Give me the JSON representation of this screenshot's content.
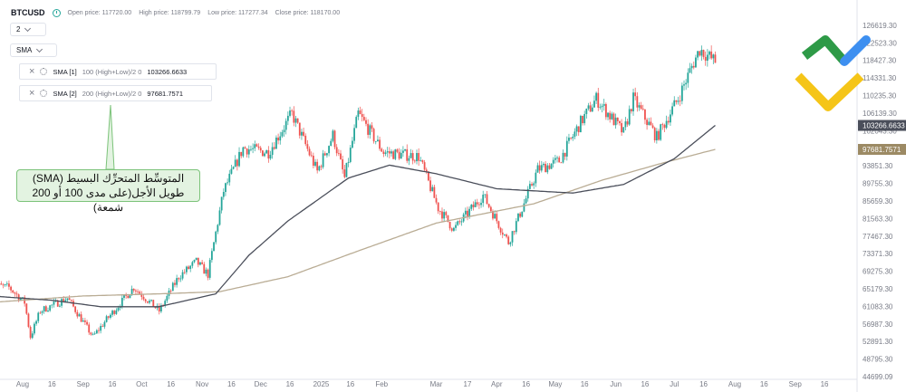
{
  "header": {
    "symbol": "BTCUSD",
    "open": "Open price: 117720.00",
    "high": "High price: 118799.79",
    "low": "Low price: 117277.34",
    "close": "Close price: 118170.00"
  },
  "controls": {
    "interval": "2",
    "indicator": "SMA"
  },
  "indicators": [
    {
      "name": "SMA [1]",
      "params": "100 (High+Low)/2 0",
      "value": "103266.6633"
    },
    {
      "name": "SMA [2]",
      "params": "200 (High+Low)/2 0",
      "value": "97681.7571"
    }
  ],
  "annotation": {
    "line1": "المتوسِّط المتحرِّك البسيط (SMA)",
    "line2": "طويل الأجل(على مدى 100 أو 200 شمعة)"
  },
  "colors": {
    "up": "#26a69a",
    "down": "#ef5350",
    "sma100": "#4a4e5a",
    "sma200": "#b9ac94",
    "annot_bg": "#e3f3e1",
    "annot_border": "#7cc37a"
  },
  "chart_data": {
    "type": "candlestick",
    "ylim": [
      44699.09,
      128500
    ],
    "ytick_values": [
      126619.3,
      122523.3,
      118427.3,
      114331.3,
      110235.3,
      106139.3,
      102043.3,
      97947.3,
      93851.3,
      89755.3,
      85659.3,
      81563.3,
      77467.3,
      73371.3,
      69275.3,
      65179.3,
      61083.3,
      56987.3,
      52891.3,
      48795.3,
      44699.09
    ],
    "ytick_labels": [
      "126619.30",
      "122523.30",
      "118427.30",
      "114331.30",
      "110235.30",
      "106139.30",
      "102043.30",
      "97947.30",
      "93851.30",
      "89755.30",
      "85659.30",
      "81563.30",
      "77467.30",
      "73371.30",
      "69275.30",
      "65179.30",
      "61083.30",
      "56987.30",
      "52891.30",
      "48795.30",
      "44699.09"
    ],
    "xtick_labels": [
      "Aug",
      "16",
      "Sep",
      "16",
      "Oct",
      "16",
      "Nov",
      "16",
      "Dec",
      "16",
      "2025",
      "16",
      "Feb",
      "Mar",
      "17",
      "Apr",
      "16",
      "May",
      "16",
      "Jun",
      "16",
      "Jul",
      "16",
      "Aug",
      "16",
      "Sep",
      "16"
    ],
    "xtick_dates": [
      "2024-08-01",
      "2024-08-16",
      "2024-09-01",
      "2024-09-16",
      "2024-10-01",
      "2024-10-16",
      "2024-11-01",
      "2024-11-16",
      "2024-12-01",
      "2024-12-16",
      "2025-01-01",
      "2025-01-16",
      "2025-02-01",
      "2025-03-01",
      "2025-03-17",
      "2025-04-01",
      "2025-04-16",
      "2025-05-01",
      "2025-05-16",
      "2025-06-01",
      "2025-06-16",
      "2025-07-01",
      "2025-07-16",
      "2025-08-01",
      "2025-08-16",
      "2025-09-01",
      "2025-09-16"
    ],
    "last_date": "2025-07-22",
    "price_key": [
      [
        "2024-07-16",
        66000
      ],
      [
        "2024-07-25",
        65500
      ],
      [
        "2024-08-02",
        62000
      ],
      [
        "2024-08-05",
        54000
      ],
      [
        "2024-08-10",
        60000
      ],
      [
        "2024-08-24",
        63000
      ],
      [
        "2024-09-06",
        54000
      ],
      [
        "2024-09-13",
        58000
      ],
      [
        "2024-09-27",
        65500
      ],
      [
        "2024-10-10",
        60000
      ],
      [
        "2024-10-20",
        68000
      ],
      [
        "2024-10-29",
        71500
      ],
      [
        "2024-11-04",
        68500
      ],
      [
        "2024-11-12",
        88000
      ],
      [
        "2024-11-22",
        98000
      ],
      [
        "2024-12-05",
        97000
      ],
      [
        "2024-12-17",
        106000
      ],
      [
        "2024-12-30",
        92500
      ],
      [
        "2025-01-07",
        101000
      ],
      [
        "2025-01-13",
        91000
      ],
      [
        "2025-01-20",
        106000
      ],
      [
        "2025-02-02",
        97000
      ],
      [
        "2025-02-20",
        96000
      ],
      [
        "2025-03-02",
        84000
      ],
      [
        "2025-03-10",
        79000
      ],
      [
        "2025-03-25",
        87000
      ],
      [
        "2025-04-07",
        76000
      ],
      [
        "2025-04-22",
        93000
      ],
      [
        "2025-05-03",
        95000
      ],
      [
        "2025-05-14",
        104000
      ],
      [
        "2025-05-22",
        109500
      ],
      [
        "2025-06-05",
        101500
      ],
      [
        "2025-06-10",
        109500
      ],
      [
        "2025-06-22",
        100500
      ],
      [
        "2025-07-03",
        109500
      ],
      [
        "2025-07-10",
        117000
      ],
      [
        "2025-07-14",
        121000
      ],
      [
        "2025-07-22",
        118170
      ]
    ],
    "sma100": [
      [
        "2024-07-16",
        63500
      ],
      [
        "2024-08-16",
        62500
      ],
      [
        "2024-09-10",
        61000
      ],
      [
        "2024-10-10",
        61000
      ],
      [
        "2024-11-08",
        64000
      ],
      [
        "2024-11-25",
        73000
      ],
      [
        "2024-12-15",
        81000
      ],
      [
        "2025-01-15",
        91000
      ],
      [
        "2025-02-05",
        94000
      ],
      [
        "2025-03-01",
        92000
      ],
      [
        "2025-04-01",
        88500
      ],
      [
        "2025-05-10",
        87500
      ],
      [
        "2025-06-05",
        89500
      ],
      [
        "2025-07-01",
        95500
      ],
      [
        "2025-07-22",
        103266.66
      ]
    ],
    "sma200": [
      [
        "2024-07-16",
        62000
      ],
      [
        "2024-09-01",
        63500
      ],
      [
        "2024-10-10",
        64000
      ],
      [
        "2024-11-10",
        64500
      ],
      [
        "2024-12-15",
        68000
      ],
      [
        "2025-01-20",
        74000
      ],
      [
        "2025-03-01",
        80500
      ],
      [
        "2025-04-20",
        85000
      ],
      [
        "2025-05-25",
        90500
      ],
      [
        "2025-06-25",
        94500
      ],
      [
        "2025-07-22",
        97681.76
      ]
    ],
    "sma_values": [
      "103266.6633",
      "97681.7571"
    ],
    "grid": false,
    "legend": "top-left"
  }
}
